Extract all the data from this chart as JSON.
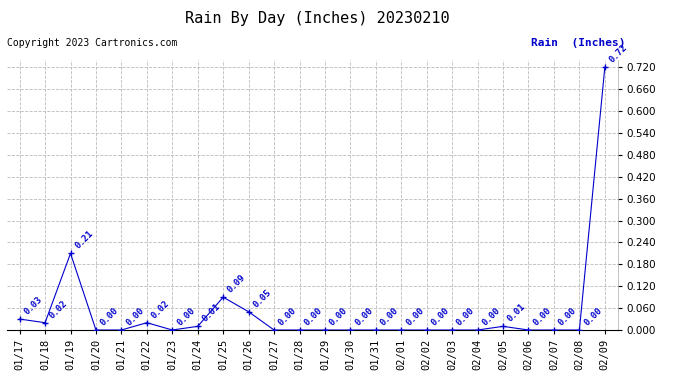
{
  "title": "Rain By Day (Inches) 20230210",
  "copyright": "Copyright 2023 Cartronics.com",
  "legend_label": "Rain  (Inches)",
  "dates": [
    "01/17",
    "01/18",
    "01/19",
    "01/20",
    "01/21",
    "01/22",
    "01/23",
    "01/24",
    "01/25",
    "01/26",
    "01/27",
    "01/28",
    "01/29",
    "01/30",
    "01/31",
    "02/01",
    "02/02",
    "02/03",
    "02/04",
    "02/05",
    "02/06",
    "02/07",
    "02/08",
    "02/09"
  ],
  "values": [
    0.03,
    0.02,
    0.21,
    0.0,
    0.0,
    0.02,
    0.0,
    0.01,
    0.09,
    0.05,
    0.0,
    0.0,
    0.0,
    0.0,
    0.0,
    0.0,
    0.0,
    0.0,
    0.0,
    0.01,
    0.0,
    0.0,
    0.0,
    0.72
  ],
  "line_color": "#0000cc",
  "marker_color": "#0000cc",
  "label_color": "#0000cc",
  "title_color": "#000000",
  "copyright_color": "#000000",
  "legend_color": "#0000cc",
  "bg_color": "#ffffff",
  "grid_color": "#bbbbbb",
  "ylim": [
    0.0,
    0.74
  ],
  "yticks": [
    0.0,
    0.06,
    0.12,
    0.18,
    0.24,
    0.3,
    0.36,
    0.42,
    0.48,
    0.54,
    0.6,
    0.66,
    0.72
  ],
  "title_fontsize": 11,
  "copyright_fontsize": 7,
  "legend_fontsize": 8,
  "label_fontsize": 6.5,
  "tick_fontsize": 7.5
}
